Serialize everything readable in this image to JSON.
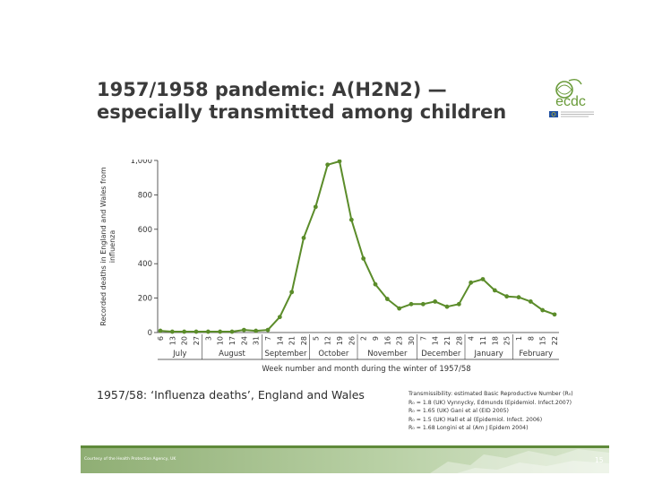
{
  "slide": {
    "title": "1957/1958 pandemic: A(H2N2) — especially transmitted among children",
    "subtitle": "1957/58: ‘Influenza deaths’, England and Wales",
    "transmissibility_heading": "Transmissibility: estimated Basic Reproductive Number (R₀)",
    "references": [
      "R₀ = 1.8 (UK) Vynnycky, Edmunds (Epidemiol. Infect.2007)",
      "R₀ = 1.65 (UK) Gani et al (EID 2005)",
      "R₀ = 1.5 (UK) Hall et al (Epidemiol. Infect. 2006)",
      "R₀ = 1.68 Longini et al (Am J Epidem 2004)"
    ],
    "credit": "Courtesy of the Health Protection Agency, UK",
    "page_number": "15",
    "logo_text": "ecdc"
  },
  "colors": {
    "series": "#5b8c2a",
    "axis": "#333333",
    "footer_bar": "#5f8a3a"
  },
  "chart_data": {
    "type": "line",
    "title": "",
    "xlabel": "Week number and month during the winter of 1957/58",
    "ylabel": "Recorded deaths in England and Wales from influenza",
    "ylim": [
      0,
      1000
    ],
    "yticks": [
      0,
      200,
      400,
      600,
      800,
      1000
    ],
    "ytick_labels": [
      "0",
      "200",
      "400",
      "600",
      "800",
      "1,000"
    ],
    "categories": [
      "6",
      "13",
      "20",
      "27",
      "3",
      "10",
      "17",
      "24",
      "31",
      "7",
      "14",
      "21",
      "28",
      "5",
      "12",
      "19",
      "26",
      "2",
      "9",
      "16",
      "23",
      "30",
      "7",
      "14",
      "21",
      "28",
      "4",
      "11",
      "18",
      "25",
      "1",
      "8",
      "15",
      "22"
    ],
    "months": [
      {
        "label": "July",
        "start": 0,
        "end": 4
      },
      {
        "label": "August",
        "start": 4,
        "end": 9
      },
      {
        "label": "September",
        "start": 9,
        "end": 13
      },
      {
        "label": "October",
        "start": 13,
        "end": 17
      },
      {
        "label": "November",
        "start": 17,
        "end": 22
      },
      {
        "label": "December",
        "start": 22,
        "end": 26
      },
      {
        "label": "January",
        "start": 26,
        "end": 30
      },
      {
        "label": "February",
        "start": 30,
        "end": 34
      }
    ],
    "series": [
      {
        "values": [
          10,
          5,
          5,
          5,
          5,
          5,
          5,
          15,
          10,
          15,
          90,
          235,
          550,
          730,
          975,
          995,
          655,
          430,
          280,
          195,
          140,
          165,
          165,
          180,
          150,
          165,
          290,
          310,
          245,
          210,
          205,
          180,
          130,
          105
        ]
      }
    ],
    "grid": false,
    "legend": "none"
  }
}
